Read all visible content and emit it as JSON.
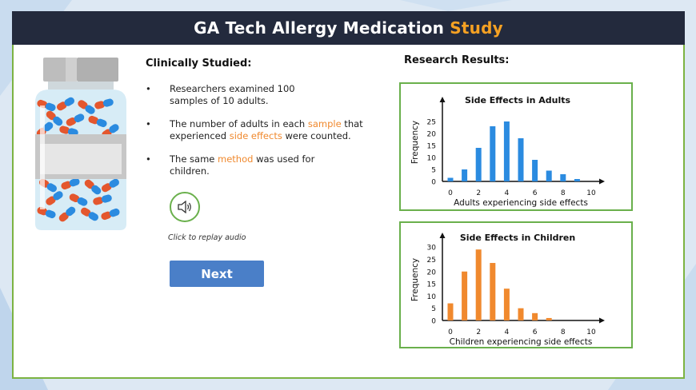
{
  "header": {
    "title_main": "GA Tech Allergy Medication ",
    "title_accent": "Study"
  },
  "left": {
    "heading": "Clinically Studied:",
    "bullets": [
      {
        "dot": "•",
        "pre": "Researchers examined 100 samples of 10 adults.",
        "hl": "",
        "mid": "",
        "hl2": "",
        "post": ""
      },
      {
        "dot": "•",
        "pre": "The number of adults in each ",
        "hl": "sample",
        "mid": " that experienced ",
        "hl2": "side effects",
        "post": " were counted."
      },
      {
        "dot": "•",
        "pre": "The same ",
        "hl": "method",
        "mid": " was used for children.",
        "hl2": "",
        "post": ""
      }
    ],
    "audio_caption": "Click to replay audio",
    "next_label": "Next"
  },
  "right": {
    "heading": "Research Results:"
  },
  "colors": {
    "accent": "#f5a123",
    "highlight": "#f0892e",
    "adult_bar": "#2b8be0",
    "child_bar": "#f0892e",
    "border": "#6ab04c",
    "button": "#4a7fc8"
  },
  "icons": {
    "bottle": "pill-bottle-icon",
    "audio": "speaker-icon"
  },
  "chart_data": [
    {
      "type": "bar",
      "title": "Side Effects in Adults",
      "xlabel": "Adults experiencing side effects",
      "ylabel": "Frequency",
      "x": [
        0,
        1,
        2,
        3,
        4,
        5,
        6,
        7,
        8,
        9,
        10
      ],
      "values": [
        1.5,
        5,
        14,
        23,
        25,
        18,
        9,
        4.5,
        3,
        1,
        0
      ],
      "xticks": [
        "0",
        "2",
        "4",
        "6",
        "8",
        "10"
      ],
      "yticks": [
        "0",
        "5",
        "10",
        "15",
        "20",
        "25"
      ],
      "xlim": [
        0,
        10
      ],
      "ylim": [
        0,
        28
      ],
      "color": "#2b8be0"
    },
    {
      "type": "bar",
      "title": "Side Effects in Children",
      "xlabel": "Children experiencing side effects",
      "ylabel": "Frequency",
      "x": [
        0,
        1,
        2,
        3,
        4,
        5,
        6,
        7,
        8,
        9,
        10
      ],
      "values": [
        7,
        20,
        29,
        23.5,
        13,
        5,
        3,
        1,
        0,
        0,
        0
      ],
      "xticks": [
        "0",
        "2",
        "4",
        "6",
        "8",
        "10"
      ],
      "yticks": [
        "0",
        "5",
        "10",
        "15",
        "20",
        "25",
        "30"
      ],
      "xlim": [
        0,
        10
      ],
      "ylim": [
        0,
        32
      ],
      "color": "#f0892e"
    }
  ]
}
